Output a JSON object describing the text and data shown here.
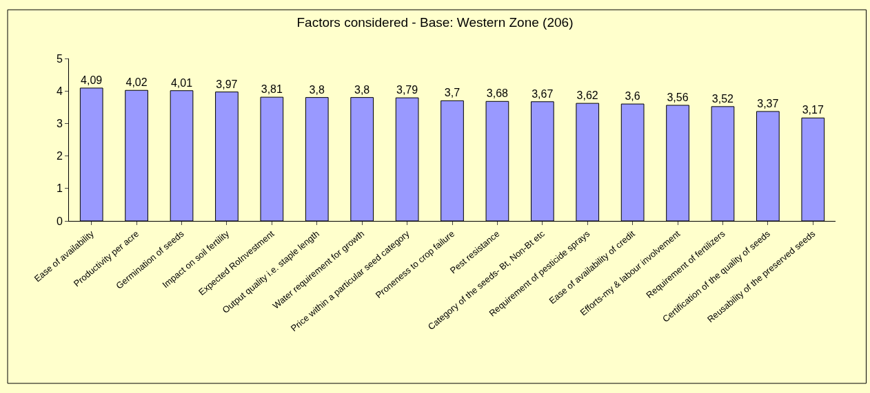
{
  "chart_data": {
    "type": "bar",
    "title": "Factors considered - Base: Western Zone (206)",
    "categories": [
      "Ease of availability",
      "Productivity per acre",
      "Germination of seeds",
      "Impact on soil fertility",
      "Expected RoInvestment",
      "Output quality i.e. staple length",
      "Water requirement for growth",
      "Price within a particular seed category",
      "Proneness to crop failure",
      "Pest resistance",
      "Category of the seeds- Bt, Non-Bt etc",
      "Requirement of pesticide sprays",
      "Ease of availability of credit",
      "Efforts-my & labour involvement",
      "Requirement of fertilizers",
      "Certification of the quality of seeds",
      "Reusability of the preserved seeds"
    ],
    "values": [
      4.09,
      4.02,
      4.01,
      3.97,
      3.81,
      3.8,
      3.8,
      3.79,
      3.7,
      3.68,
      3.67,
      3.62,
      3.6,
      3.56,
      3.52,
      3.37,
      3.17
    ],
    "value_labels": [
      "4,09",
      "4,02",
      "4,01",
      "3,97",
      "3,81",
      "3,8",
      "3,8",
      "3,79",
      "3,7",
      "3,68",
      "3,67",
      "3,62",
      "3,6",
      "3,56",
      "3,52",
      "3,37",
      "3,17"
    ],
    "color": "#9999ff",
    "ylim": [
      0,
      5
    ],
    "yticks": [
      0,
      1,
      2,
      3,
      4,
      5
    ],
    "grid": false,
    "legend": false
  }
}
